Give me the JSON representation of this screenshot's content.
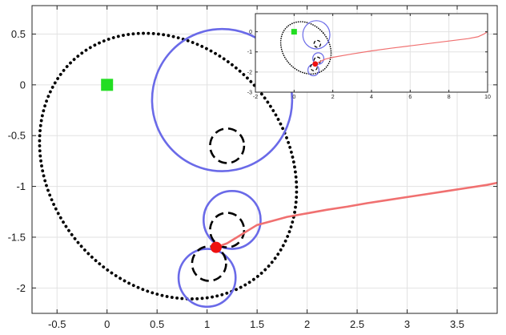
{
  "chart_data": [
    {
      "type": "line",
      "title": "",
      "xlabel": "",
      "ylabel": "",
      "xlim": [
        -0.75,
        3.9
      ],
      "ylim": [
        -2.25,
        0.78
      ],
      "grid": true,
      "x_ticks": [
        -0.5,
        0,
        0.5,
        1,
        1.5,
        2,
        2.5,
        3,
        3.5
      ],
      "y_ticks": [
        -2,
        -1.5,
        -1,
        -0.5,
        0,
        0.5
      ],
      "x_tick_labels": [
        "-0.5",
        "0",
        "0.5",
        "1",
        "1.5",
        "2",
        "2.5",
        "3",
        "3.5"
      ],
      "y_tick_labels": [
        "-2",
        "-1.5",
        "-1",
        "-0.5",
        "0",
        "0.5"
      ],
      "colors": {
        "trajectory": "#f07070",
        "circle": "#6a6ae8",
        "dashed": "#000000",
        "boundary": "#000000",
        "goal": "#22dd22",
        "robot": "#ee1111"
      },
      "goal_marker": {
        "x": 0,
        "y": 0
      },
      "robot_marker": {
        "x": 1.09,
        "y": -1.6
      },
      "blue_circles": [
        {
          "cx": 1.15,
          "cy": -0.15,
          "r": 0.7
        },
        {
          "cx": 1.25,
          "cy": -1.33,
          "r": 0.285
        },
        {
          "cx": 1.0,
          "cy": -1.9,
          "r": 0.285
        }
      ],
      "dashed_circles": [
        {
          "cx": 1.2,
          "cy": -0.6,
          "r": 0.17
        },
        {
          "cx": 1.2,
          "cy": -1.43,
          "r": 0.17
        },
        {
          "cx": 1.02,
          "cy": -1.76,
          "r": 0.17
        }
      ],
      "dotted_ellipse": {
        "cx": 0.61,
        "cy": -0.8,
        "rx": 1.18,
        "ry": 1.4,
        "rotation_deg": 40
      },
      "trajectory": {
        "x": [
          1.09,
          1.2,
          1.3,
          1.4,
          1.5,
          1.65,
          1.8,
          2.0,
          2.2,
          2.4,
          2.6,
          2.8,
          3.0,
          3.2,
          3.4,
          3.6,
          3.8,
          3.9
        ],
        "y": [
          -1.6,
          -1.56,
          -1.5,
          -1.44,
          -1.38,
          -1.34,
          -1.3,
          -1.265,
          -1.23,
          -1.2,
          -1.165,
          -1.135,
          -1.105,
          -1.075,
          -1.045,
          -1.015,
          -0.985,
          -0.965
        ]
      }
    },
    {
      "type": "line",
      "title": "",
      "xlabel": "",
      "ylabel": "",
      "xlim": [
        -2,
        10
      ],
      "ylim": [
        -3,
        0.9
      ],
      "grid": true,
      "x_ticks": [
        -2,
        0,
        2,
        4,
        6,
        8,
        10
      ],
      "y_ticks": [
        -3,
        -2,
        -1,
        0
      ],
      "x_tick_labels": [
        "-2",
        "0",
        "2",
        "4",
        "6",
        "8",
        "10"
      ],
      "y_tick_labels": [
        "-3",
        "-2",
        "-1",
        "0"
      ],
      "goal_marker": {
        "x": 0,
        "y": 0
      },
      "robot_marker": {
        "x": 1.09,
        "y": -1.6
      },
      "blue_circles": [
        {
          "cx": 1.15,
          "cy": -0.15,
          "r": 0.7
        },
        {
          "cx": 1.25,
          "cy": -1.33,
          "r": 0.285
        },
        {
          "cx": 1.0,
          "cy": -1.9,
          "r": 0.285
        }
      ],
      "dashed_circles": [
        {
          "cx": 1.2,
          "cy": -0.6,
          "r": 0.17
        },
        {
          "cx": 1.2,
          "cy": -1.43,
          "r": 0.17
        },
        {
          "cx": 1.02,
          "cy": -1.76,
          "r": 0.17
        }
      ],
      "dotted_ellipse": {
        "cx": 0.61,
        "cy": -0.8,
        "rx": 1.18,
        "ry": 1.4,
        "rotation_deg": 40
      },
      "trajectory": {
        "x": [
          1.09,
          1.3,
          1.6,
          2.0,
          3.0,
          4.0,
          5.0,
          6.0,
          7.0,
          8.0,
          9.0,
          9.5,
          9.8,
          10.0
        ],
        "y": [
          -1.6,
          -1.5,
          -1.36,
          -1.27,
          -1.1,
          -0.95,
          -0.82,
          -0.7,
          -0.58,
          -0.46,
          -0.34,
          -0.25,
          -0.12,
          0.0
        ]
      }
    }
  ]
}
